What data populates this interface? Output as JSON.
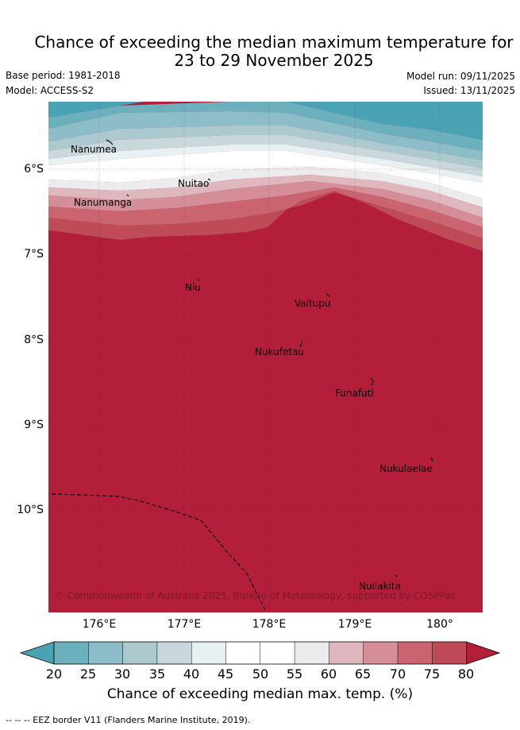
{
  "title": {
    "line1": "Chance of exceeding the median maximum temperature for",
    "line2": "23 to 29 November 2025"
  },
  "meta": {
    "base_period": "Base period: 1981-2018",
    "model": "Model: ACCESS-S2",
    "model_run": "Model run: 09/11/2025",
    "issued": "Issued: 13/11/2025"
  },
  "axes": {
    "lat_labels": [
      "6°S",
      "7°S",
      "8°S",
      "9°S",
      "10°S"
    ],
    "lon_labels": [
      "176°E",
      "177°E",
      "178°E",
      "179°E",
      "180°"
    ]
  },
  "places": {
    "nanumea": "Nanumea",
    "nanumanga": "Nanumanga",
    "nuitao": "Nuitao",
    "niu": "Niu",
    "vaitupu": "Vaitupu",
    "nukufetau": "Nukufetau",
    "funafuti": "Funafuti",
    "nukulaelae": "Nukulaelae",
    "nuilakita": "Nuilakita"
  },
  "copyright": "© Commonwealth of Australia 2025, Bureau of Meteorology, supported by COSPPac",
  "colorbar": {
    "title": "Chance of exceeding median max. temp. (%)",
    "ticks": [
      "20",
      "25",
      "30",
      "35",
      "40",
      "45",
      "50",
      "55",
      "60",
      "65",
      "70",
      "75",
      "80"
    ],
    "colors": [
      "#4aa3b5",
      "#6db0bd",
      "#8dbdc8",
      "#abc9ce",
      "#c8d8dc",
      "#e8f0f2",
      "#ffffff",
      "#ffffff",
      "#ececee",
      "#dfb8bf",
      "#d58e98",
      "#c96470",
      "#bf4a58",
      "#b31e3b"
    ]
  },
  "footer": "--  --  -- EEZ border V11 (Flanders Marine Institute, 2019)."
}
